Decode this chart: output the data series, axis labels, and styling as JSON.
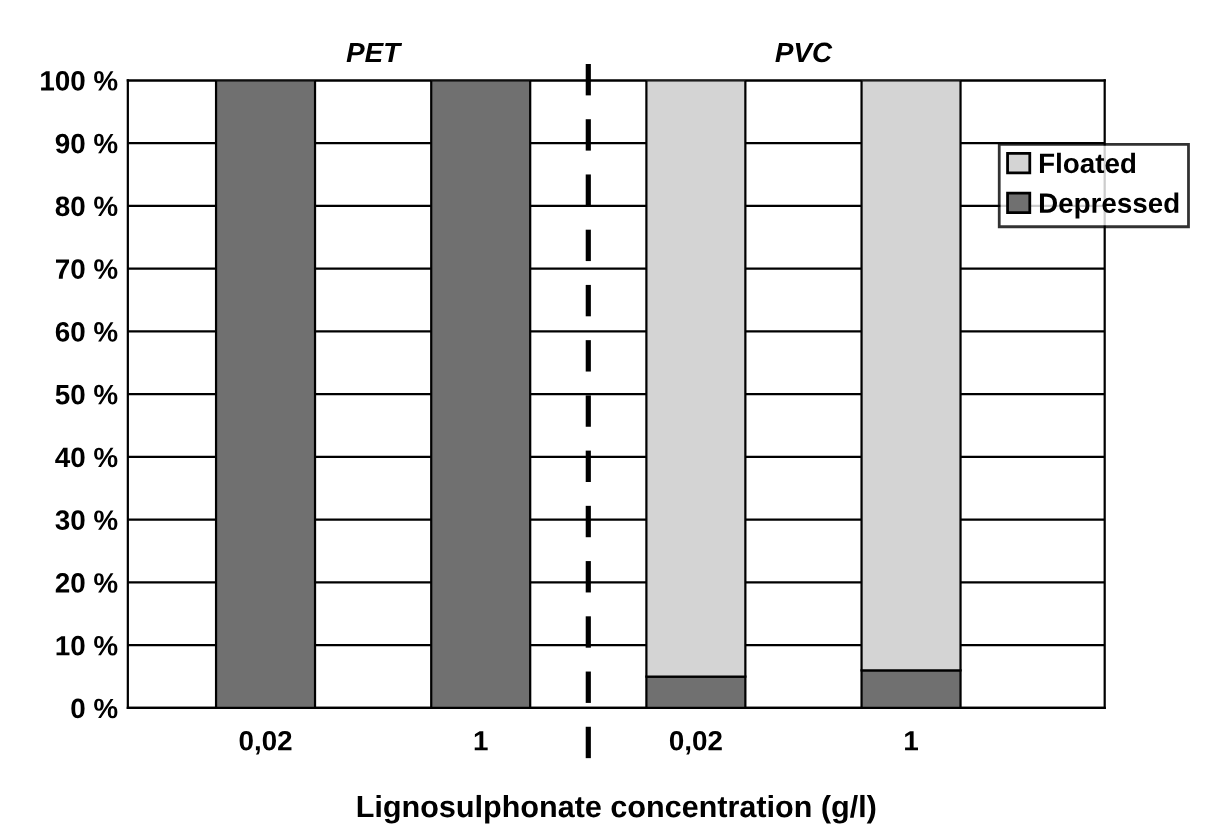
{
  "chart_data": {
    "type": "bar",
    "stacked": true,
    "xlabel": "Lignosulphonate concentration (g/l)",
    "categories": [
      "0,02",
      "1",
      "0,02",
      "1"
    ],
    "series": [
      {
        "name": "Depressed",
        "color": "#707070",
        "values": [
          100,
          100,
          5,
          6
        ]
      },
      {
        "name": "Floated",
        "color": "#d4d4d4",
        "values": [
          0,
          0,
          95,
          94
        ]
      }
    ],
    "annotations": [
      "PET",
      "PVC"
    ],
    "ylim": [
      0,
      100
    ],
    "yticks": [
      {
        "value": 0,
        "label": "0 %"
      },
      {
        "value": 10,
        "label": "10 %"
      },
      {
        "value": 20,
        "label": "20 %"
      },
      {
        "value": 30,
        "label": "30 %"
      },
      {
        "value": 40,
        "label": "40 %"
      },
      {
        "value": 50,
        "label": "50 %"
      },
      {
        "value": 60,
        "label": "60 %"
      },
      {
        "value": 70,
        "label": "70 %"
      },
      {
        "value": 80,
        "label": "80 %"
      },
      {
        "value": 90,
        "label": "90 %"
      },
      {
        "value": 100,
        "label": "100 %"
      }
    ],
    "grid": "y",
    "legend": "top right"
  }
}
